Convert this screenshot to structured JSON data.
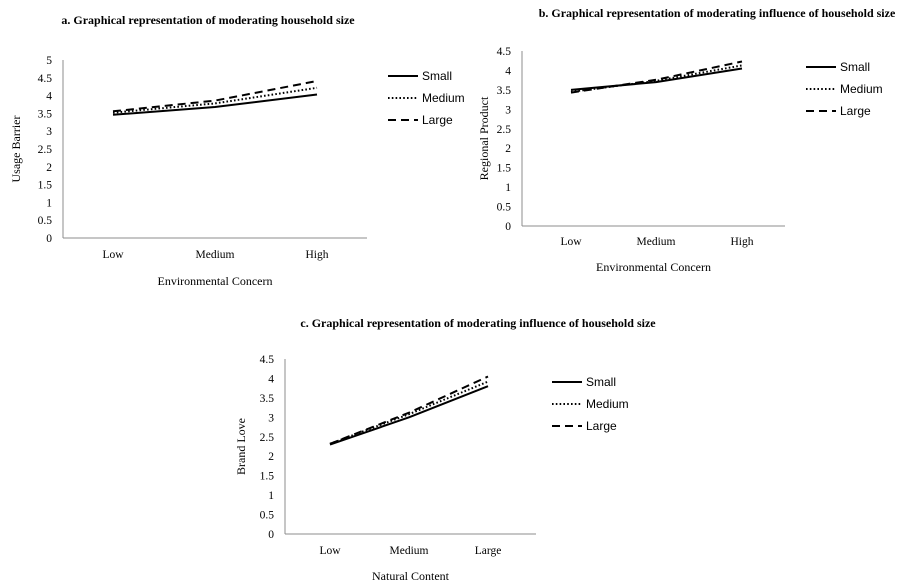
{
  "chart_data": [
    {
      "type": "line",
      "title": "a. Graphical representation of moderating household size",
      "xlabel": "Environmental Concern",
      "ylabel": "Usage Barrier",
      "categories": [
        "Low",
        "Medium",
        "High"
      ],
      "ylim": [
        0,
        5
      ],
      "yticks": [
        "0",
        "0.5",
        "1",
        "1.5",
        "2",
        "2.5",
        "3",
        "3.5",
        "4",
        "4.5",
        "5"
      ],
      "grid": false,
      "legend": "right",
      "series": [
        {
          "name": "Small",
          "values": [
            3.46,
            3.68,
            4.03
          ],
          "style": "solid"
        },
        {
          "name": "Medium",
          "values": [
            3.52,
            3.78,
            4.22
          ],
          "style": "dotted"
        },
        {
          "name": "Large",
          "values": [
            3.56,
            3.86,
            4.41
          ],
          "style": "dashed"
        }
      ]
    },
    {
      "type": "line",
      "title": "b. Graphical representation of moderating influence of household size",
      "xlabel": "Environmental Concern",
      "ylabel": "Regional Product",
      "categories": [
        "Low",
        "Medium",
        "High"
      ],
      "ylim": [
        0,
        4.5
      ],
      "yticks": [
        "0",
        "0.5",
        "1",
        "1.5",
        "2",
        "2.5",
        "3",
        "3.5",
        "4",
        "4.5"
      ],
      "grid": false,
      "legend": "right",
      "series": [
        {
          "name": "Small",
          "values": [
            3.5,
            3.7,
            4.05
          ],
          "style": "solid"
        },
        {
          "name": "Medium",
          "values": [
            3.45,
            3.73,
            4.13
          ],
          "style": "dotted"
        },
        {
          "name": "Large",
          "values": [
            3.43,
            3.76,
            4.23
          ],
          "style": "dashed"
        }
      ]
    },
    {
      "type": "line",
      "title": "c. Graphical representation of moderating influence of household size",
      "xlabel": "Natural Content",
      "ylabel": "Brand Love",
      "categories": [
        "Low",
        "Medium",
        "Large"
      ],
      "ylim": [
        0,
        4.5
      ],
      "yticks": [
        "0",
        "0.5",
        "1",
        "1.5",
        "2",
        "2.5",
        "3",
        "3.5",
        "4",
        "4.5"
      ],
      "grid": false,
      "legend": "right",
      "series": [
        {
          "name": "Small",
          "values": [
            2.3,
            3.0,
            3.8
          ],
          "style": "solid"
        },
        {
          "name": "Medium",
          "values": [
            2.32,
            3.08,
            3.92
          ],
          "style": "dotted"
        },
        {
          "name": "Large",
          "values": [
            2.32,
            3.12,
            4.05
          ],
          "style": "dashed"
        }
      ]
    }
  ]
}
